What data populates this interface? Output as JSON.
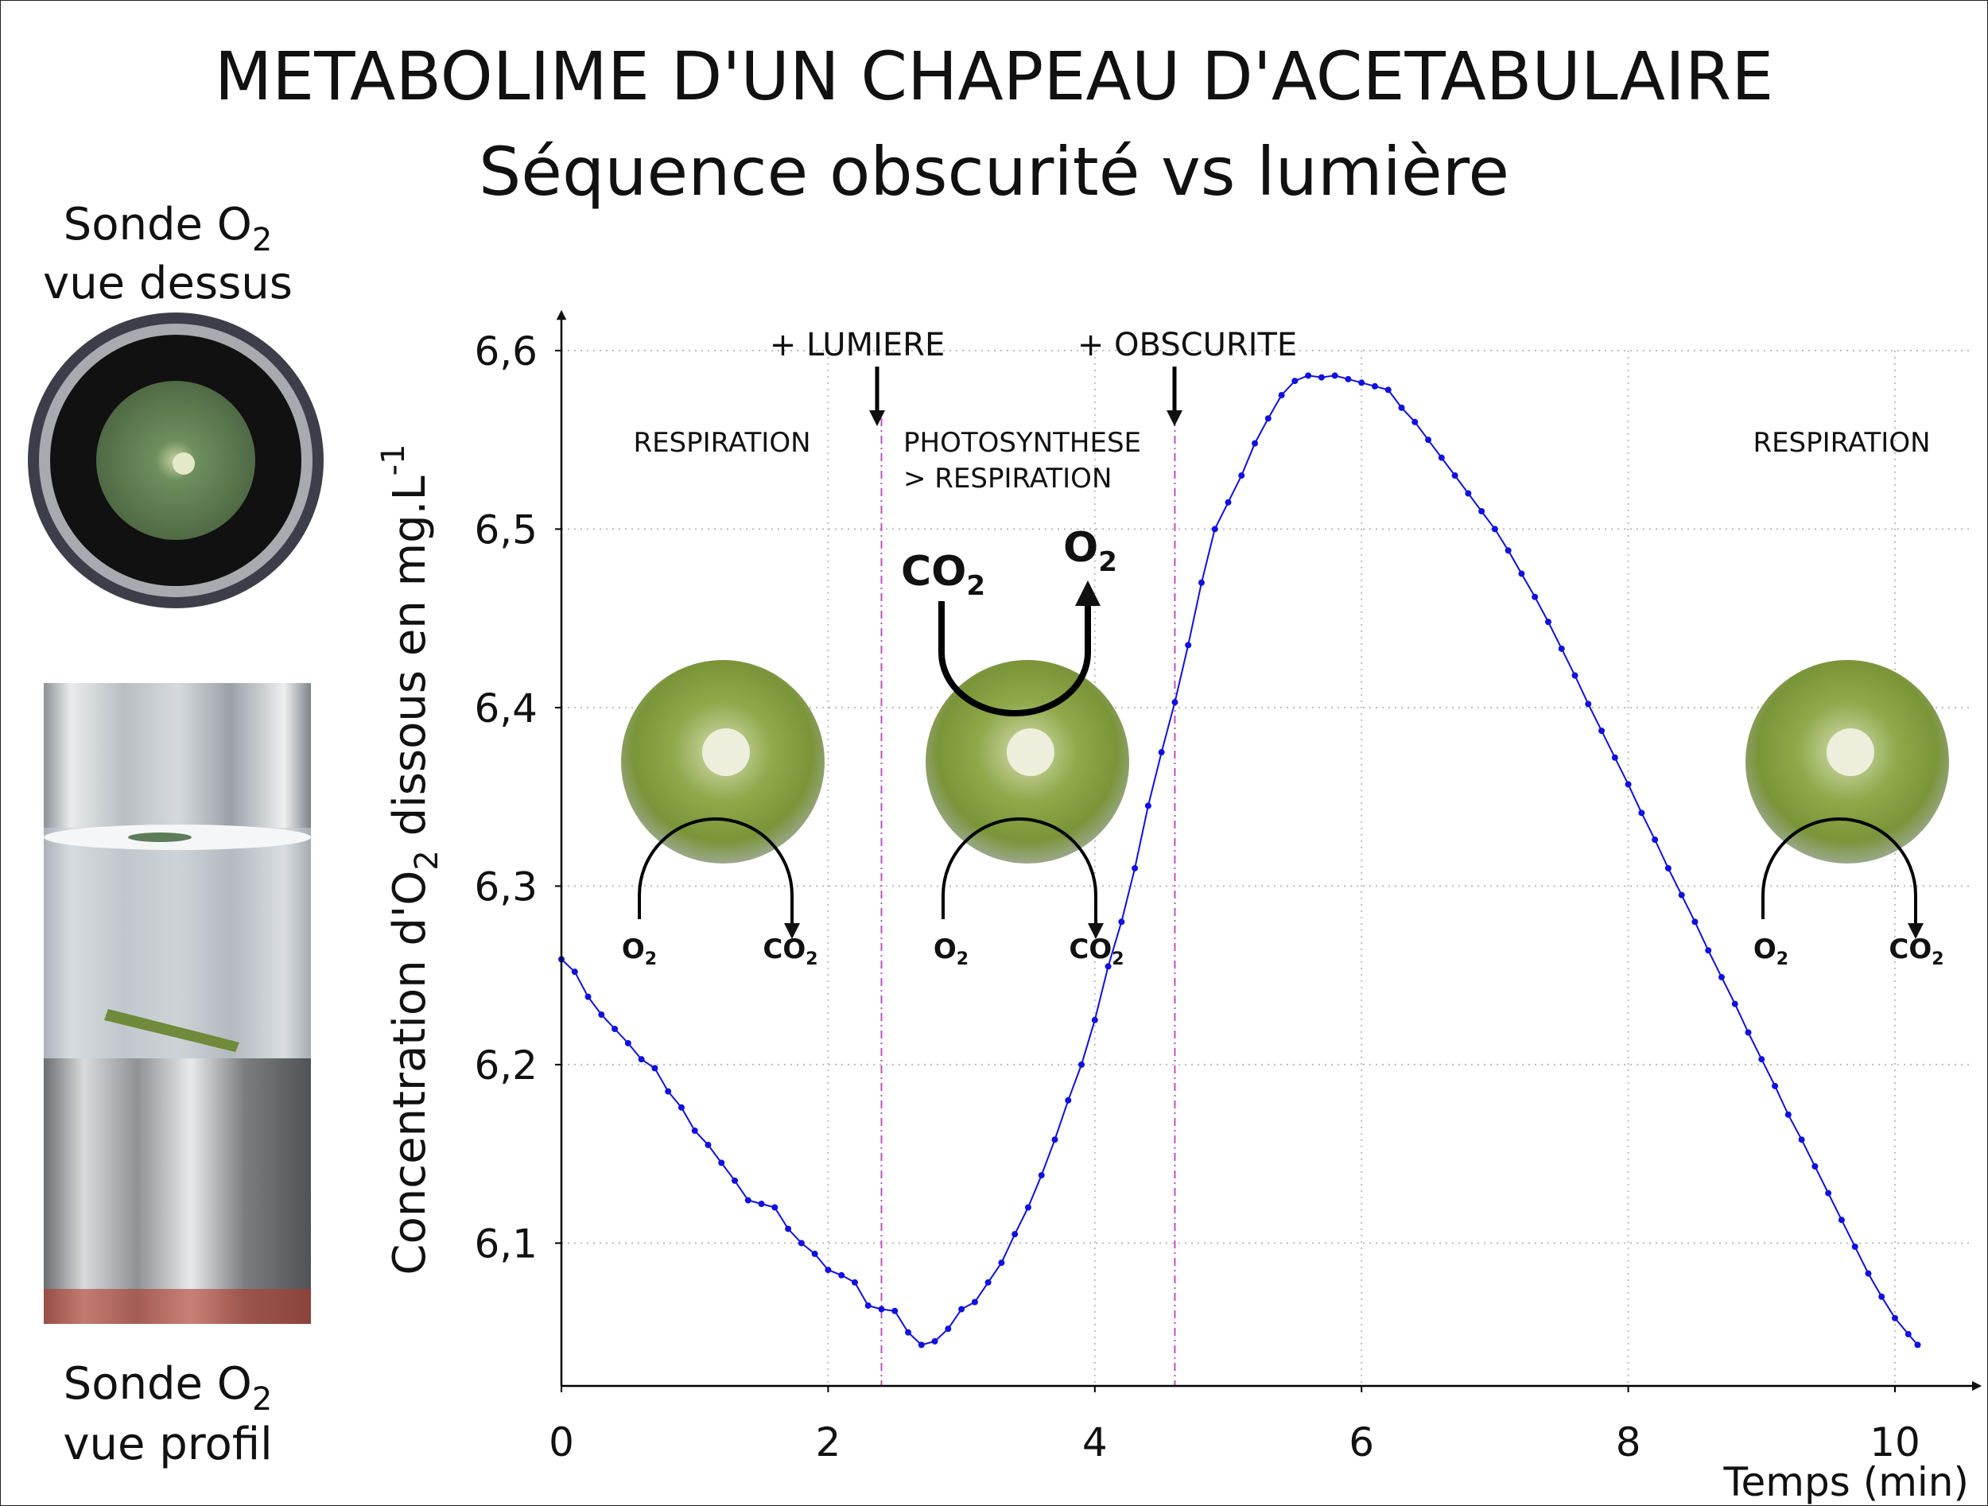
{
  "title_line1": "METABOLIME D'UN CHAPEAU D'ACETABULAIRE",
  "title_line2": "Séquence obscurité vs lumière",
  "probe_top": {
    "line1": "Sonde O",
    "sub": "2",
    "line2": "vue dessus"
  },
  "probe_side": {
    "line1": "Sonde O",
    "sub": "2",
    "line2": "vue profil"
  },
  "ylabel": {
    "part1": "Concentration d'O",
    "sub": "2",
    "part2": " dissous en mg.L",
    "sup": "-1"
  },
  "xlabel": "Temps (min)",
  "events": [
    {
      "label": "+ LUMIERE",
      "x": 2.4
    },
    {
      "label": "+ OBSCURITE",
      "x": 4.6
    }
  ],
  "phases": {
    "respiration_1": "RESPIRATION",
    "photo_line1": "PHOTOSYNTHESE",
    "photo_line2": "> RESPIRATION",
    "respiration_2": "RESPIRATION"
  },
  "gas": {
    "o2": "O",
    "co2": "CO",
    "sub": "2"
  },
  "colors": {
    "series": "#1010e0",
    "event_line": "#c050c0",
    "grid": "#bbbbbb",
    "cell_green": "#86a13a"
  },
  "chart_data": {
    "type": "line",
    "title": "METABOLIME D'UN CHAPEAU D'ACETABULAIRE — Séquence obscurité vs lumière",
    "xlabel": "Temps (min)",
    "ylabel": "Concentration d'O2 dissous en mg.L-1",
    "xlim": [
      0,
      10.6
    ],
    "ylim": [
      6.02,
      6.62
    ],
    "xticks": [
      0,
      2,
      4,
      6,
      8,
      10
    ],
    "xtick_labels": [
      "0",
      "2",
      "4",
      "6",
      "8",
      "10"
    ],
    "yticks": [
      6.1,
      6.2,
      6.3,
      6.4,
      6.5,
      6.6
    ],
    "ytick_labels": [
      "6,1",
      "6,2",
      "6,3",
      "6,4",
      "6,5",
      "6,6"
    ],
    "grid": true,
    "series": [
      {
        "x": [
          0.0,
          0.1,
          0.2,
          0.3,
          0.4,
          0.5,
          0.6,
          0.7,
          0.8,
          0.9,
          1.0,
          1.1,
          1.2,
          1.3,
          1.4,
          1.5,
          1.6,
          1.7,
          1.8,
          1.9,
          2.0,
          2.1,
          2.2,
          2.3,
          2.4,
          2.5,
          2.6,
          2.7,
          2.8,
          2.9,
          3.0,
          3.1,
          3.2,
          3.3,
          3.4,
          3.5,
          3.6,
          3.7,
          3.8,
          3.9,
          4.0,
          4.1,
          4.2,
          4.3,
          4.4,
          4.5,
          4.6,
          4.7,
          4.8,
          4.9,
          5.0,
          5.1,
          5.2,
          5.3,
          5.4,
          5.5,
          5.6,
          5.7,
          5.8,
          5.9,
          6.0,
          6.1,
          6.2,
          6.3,
          6.4,
          6.5,
          6.6,
          6.7,
          6.8,
          6.9,
          7.0,
          7.1,
          7.2,
          7.3,
          7.4,
          7.5,
          7.6,
          7.7,
          7.8,
          7.9,
          8.0,
          8.1,
          8.2,
          8.3,
          8.4,
          8.5,
          8.6,
          8.7,
          8.8,
          8.9,
          9.0,
          9.1,
          9.2,
          9.3,
          9.4,
          9.5,
          9.6,
          9.7,
          9.8,
          9.9,
          10.0,
          10.1,
          10.17
        ],
        "y": [
          6.259,
          6.252,
          6.238,
          6.228,
          6.22,
          6.212,
          6.203,
          6.198,
          6.185,
          6.176,
          6.163,
          6.155,
          6.145,
          6.135,
          6.124,
          6.122,
          6.12,
          6.108,
          6.1,
          6.094,
          6.085,
          6.082,
          6.078,
          6.065,
          6.063,
          6.062,
          6.05,
          6.043,
          6.045,
          6.052,
          6.063,
          6.067,
          6.078,
          6.089,
          6.105,
          6.12,
          6.138,
          6.158,
          6.18,
          6.2,
          6.225,
          6.255,
          6.28,
          6.31,
          6.345,
          6.375,
          6.403,
          6.435,
          6.47,
          6.5,
          6.515,
          6.53,
          6.548,
          6.562,
          6.575,
          6.583,
          6.586,
          6.585,
          6.586,
          6.584,
          6.582,
          6.58,
          6.578,
          6.568,
          6.56,
          6.55,
          6.54,
          6.53,
          6.52,
          6.51,
          6.5,
          6.488,
          6.475,
          6.462,
          6.448,
          6.433,
          6.418,
          6.402,
          6.387,
          6.372,
          6.357,
          6.341,
          6.326,
          6.31,
          6.295,
          6.28,
          6.264,
          6.249,
          6.234,
          6.218,
          6.203,
          6.188,
          6.172,
          6.158,
          6.143,
          6.128,
          6.113,
          6.098,
          6.083,
          6.07,
          6.058,
          6.049,
          6.043
        ]
      }
    ]
  }
}
